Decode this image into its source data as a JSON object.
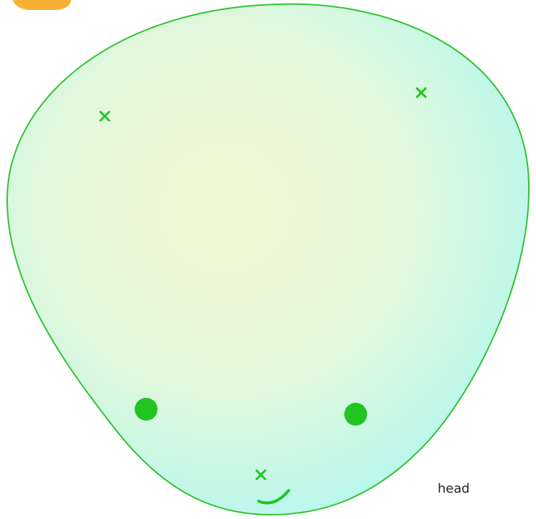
{
  "label": "head"
}
